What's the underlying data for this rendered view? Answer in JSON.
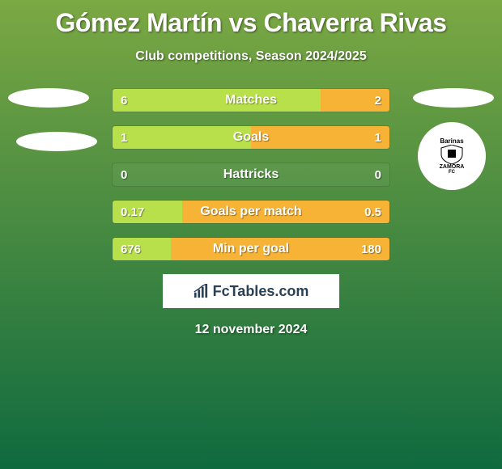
{
  "background": {
    "gradient_top": "#7ba843",
    "gradient_bottom": "#0f6a3f"
  },
  "title": "Gómez Martín vs Chaverra Rivas",
  "title_color": "#ffffff",
  "title_fontsize": 32,
  "subtitle": "Club competitions, Season 2024/2025",
  "subtitle_fontsize": 16,
  "bar": {
    "left_color": "#b8e04a",
    "right_color": "#f6b335",
    "height": 30,
    "gap": 16,
    "border_radius": 4
  },
  "stats": [
    {
      "label": "Matches",
      "left_val": "6",
      "right_val": "2",
      "left_pct": 75,
      "right_pct": 25
    },
    {
      "label": "Goals",
      "left_val": "1",
      "right_val": "1",
      "left_pct": 50,
      "right_pct": 50
    },
    {
      "label": "Hattricks",
      "left_val": "0",
      "right_val": "0",
      "left_pct": 0,
      "right_pct": 0
    },
    {
      "label": "Goals per match",
      "left_val": "0.17",
      "right_val": "0.5",
      "left_pct": 25,
      "right_pct": 75
    },
    {
      "label": "Min per goal",
      "left_val": "676",
      "right_val": "180",
      "left_pct": 21,
      "right_pct": 79
    }
  ],
  "club_logo": {
    "top_text": "Barinas",
    "main_text": "ZAMORA",
    "sub_text": "FC"
  },
  "brand": "FcTables.com",
  "date": "12 november 2024"
}
